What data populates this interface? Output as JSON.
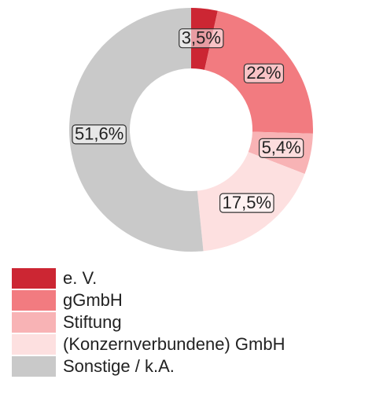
{
  "chart_data": {
    "type": "donut",
    "categories": [
      "e. V.",
      "gGmbH",
      "Stiftung",
      "(Konzernverbundene) GmbH",
      "Sonstige / k.A."
    ],
    "values": [
      3.5,
      22,
      5.4,
      17.5,
      51.6
    ],
    "value_labels": [
      "3,5%",
      "22%",
      "5,4%",
      "17,5%",
      "51,6%"
    ],
    "colors": [
      "#cc2633",
      "#f27b80",
      "#f8b3b5",
      "#fde0e0",
      "#c9c9c9"
    ],
    "legend": "bottom-left"
  }
}
